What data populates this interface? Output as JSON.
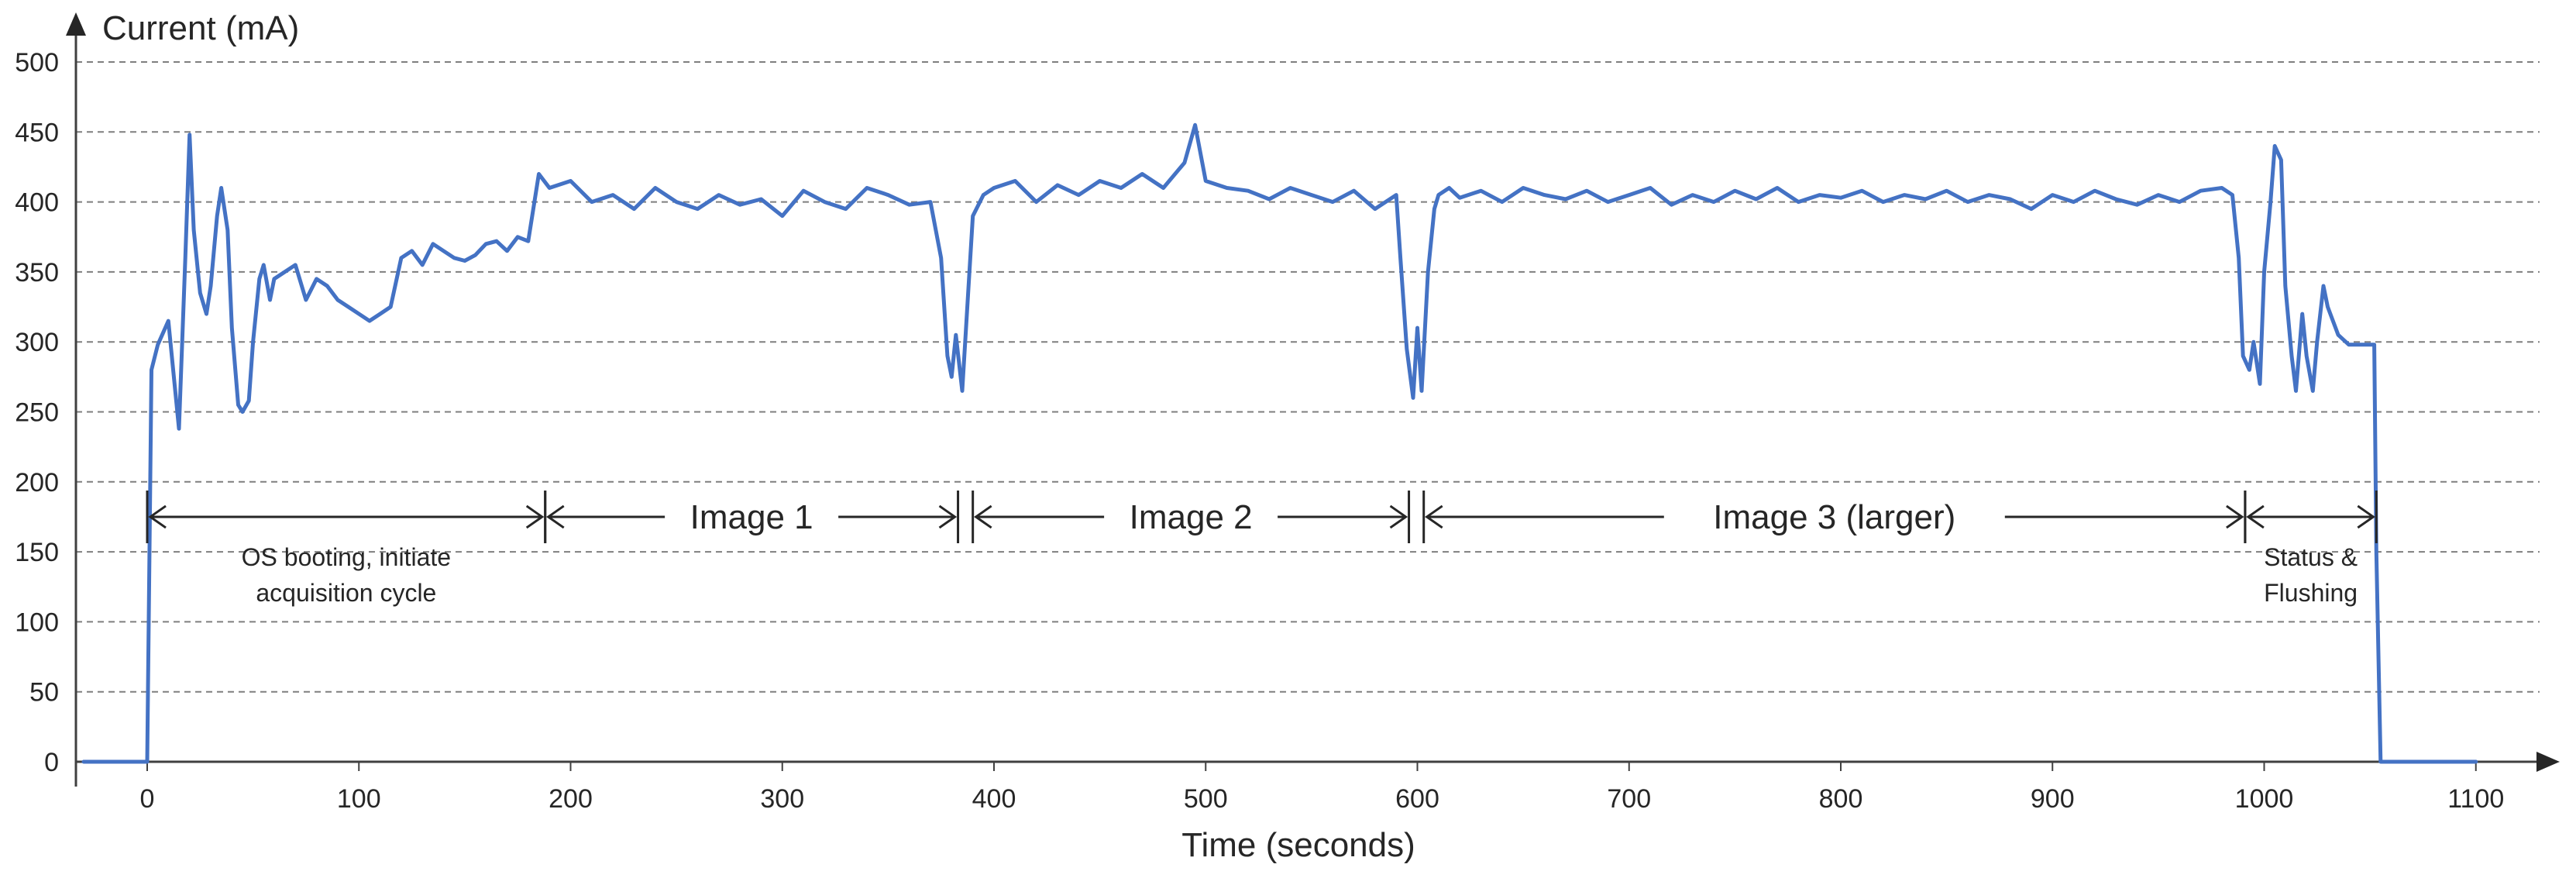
{
  "chart_data": {
    "type": "line",
    "title": "",
    "ylabel": "Current (mA)",
    "xlabel": "Time (seconds)",
    "xlim": [
      -30,
      1140
    ],
    "ylim": [
      0,
      500
    ],
    "xticks": [
      0,
      100,
      200,
      300,
      400,
      500,
      600,
      700,
      800,
      900,
      1000,
      1100
    ],
    "yticks": [
      0,
      50,
      100,
      150,
      200,
      250,
      300,
      350,
      400,
      450,
      500
    ],
    "grid": "horizontal dashed",
    "series": [
      {
        "color": "#4472C4",
        "x": [
          -30,
          0,
          2,
          5,
          10,
          15,
          18,
          20,
          22,
          25,
          28,
          30,
          33,
          35,
          38,
          40,
          43,
          45,
          48,
          50,
          53,
          55,
          58,
          60,
          65,
          70,
          75,
          80,
          85,
          90,
          95,
          100,
          105,
          110,
          115,
          120,
          125,
          130,
          135,
          140,
          145,
          150,
          155,
          160,
          165,
          170,
          175,
          180,
          185,
          190,
          200,
          210,
          220,
          230,
          240,
          250,
          260,
          270,
          280,
          290,
          300,
          310,
          320,
          330,
          340,
          350,
          360,
          370,
          375,
          378,
          380,
          382,
          385,
          388,
          390,
          395,
          400,
          410,
          420,
          430,
          440,
          450,
          460,
          470,
          480,
          490,
          495,
          500,
          510,
          520,
          530,
          540,
          550,
          560,
          570,
          580,
          590,
          592,
          595,
          598,
          600,
          602,
          605,
          608,
          610,
          615,
          620,
          630,
          640,
          650,
          660,
          670,
          680,
          690,
          700,
          710,
          720,
          730,
          740,
          750,
          760,
          770,
          780,
          790,
          800,
          810,
          820,
          830,
          840,
          850,
          860,
          870,
          880,
          890,
          900,
          910,
          920,
          930,
          940,
          950,
          960,
          970,
          980,
          985,
          988,
          990,
          993,
          995,
          998,
          1000,
          1003,
          1005,
          1008,
          1010,
          1013,
          1015,
          1018,
          1020,
          1023,
          1025,
          1028,
          1030,
          1035,
          1040,
          1045,
          1050,
          1052,
          1053,
          1055,
          1060,
          1080,
          1100
        ],
        "values": [
          0,
          0,
          280,
          298,
          315,
          238,
          360,
          448,
          380,
          335,
          320,
          340,
          390,
          410,
          380,
          310,
          255,
          250,
          258,
          300,
          345,
          355,
          330,
          345,
          350,
          355,
          330,
          345,
          340,
          330,
          325,
          320,
          315,
          320,
          325,
          360,
          365,
          355,
          370,
          365,
          360,
          358,
          362,
          370,
          372,
          365,
          375,
          372,
          420,
          410,
          415,
          400,
          405,
          395,
          410,
          400,
          395,
          405,
          398,
          402,
          390,
          408,
          400,
          395,
          410,
          405,
          398,
          400,
          360,
          290,
          275,
          305,
          265,
          340,
          390,
          405,
          410,
          415,
          400,
          412,
          405,
          415,
          410,
          420,
          410,
          428,
          455,
          415,
          410,
          408,
          402,
          410,
          405,
          400,
          408,
          395,
          405,
          360,
          295,
          260,
          310,
          265,
          350,
          395,
          405,
          410,
          403,
          408,
          400,
          410,
          405,
          402,
          408,
          400,
          405,
          410,
          398,
          405,
          400,
          408,
          402,
          410,
          400,
          405,
          403,
          408,
          400,
          405,
          402,
          408,
          400,
          405,
          402,
          395,
          405,
          400,
          408,
          402,
          398,
          405,
          400,
          408,
          410,
          405,
          360,
          290,
          280,
          300,
          270,
          350,
          400,
          440,
          430,
          340,
          290,
          265,
          320,
          290,
          265,
          300,
          340,
          325,
          305,
          298,
          298,
          298,
          298,
          150,
          0,
          0,
          0,
          0
        ]
      }
    ],
    "annotations": [
      {
        "kind": "span",
        "from": 0,
        "to": 188,
        "y": 175,
        "label": "OS booting, initiate acquisition cycle",
        "label_lines": [
          "OS booting, initiate",
          "acquisition cycle"
        ],
        "label_position": "below"
      },
      {
        "kind": "span",
        "from": 188,
        "to": 383,
        "y": 175,
        "label": "Image 1",
        "label_position": "inline"
      },
      {
        "kind": "span",
        "from": 390,
        "to": 596,
        "y": 175,
        "label": "Image 2",
        "label_position": "inline"
      },
      {
        "kind": "span",
        "from": 603,
        "to": 991,
        "y": 175,
        "label": "Image 3 (larger)",
        "label_position": "inline"
      },
      {
        "kind": "span",
        "from": 991,
        "to": 1053,
        "y": 175,
        "label": "Status & Flushing",
        "label_lines": [
          "Status &",
          "Flushing"
        ],
        "label_position": "below"
      }
    ]
  }
}
